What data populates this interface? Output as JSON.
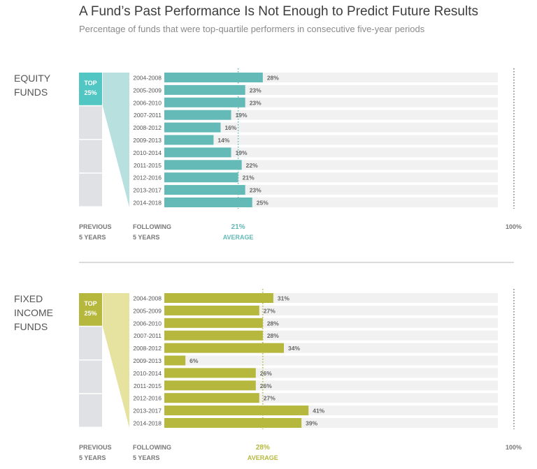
{
  "title": "A Fund’s Past Performance Is Not Enough to Predict Future Results",
  "subtitle": "Percentage of funds that were top-quartile performers in consecutive five-year periods",
  "chart_data": [
    {
      "type": "bar",
      "orientation": "horizontal",
      "panel_label": [
        "EQUITY",
        "FUNDS"
      ],
      "top_box": [
        "TOP",
        "25%"
      ],
      "color": "#63bab7",
      "top_box_color": "#52c6c2",
      "wedge_color": "#b7e0df",
      "categories": [
        "2004-2008",
        "2005-2009",
        "2006-2010",
        "2007-2011",
        "2008-2012",
        "2009-2013",
        "2010-2014",
        "2011-2015",
        "2012-2016",
        "2013-2017",
        "2014-2018"
      ],
      "values": [
        28,
        23,
        23,
        19,
        16,
        14,
        19,
        22,
        21,
        23,
        25
      ],
      "value_labels": [
        "28%",
        "23%",
        "23%",
        "19%",
        "16%",
        "14%",
        "19%",
        "22%",
        "21%",
        "23%",
        "25%"
      ],
      "xlim": [
        0,
        100
      ],
      "average": 21,
      "average_label": [
        "21%",
        "AVERAGE"
      ],
      "max_label": "100%",
      "left_axis_label": [
        "PREVIOUS",
        "5 YEARS"
      ],
      "right_axis_label": [
        "FOLLOWING",
        "5 YEARS"
      ]
    },
    {
      "type": "bar",
      "orientation": "horizontal",
      "panel_label": [
        "FIXED",
        "INCOME",
        "FUNDS"
      ],
      "top_box": [
        "TOP",
        "25%"
      ],
      "color": "#b5b83c",
      "top_box_color": "#b5b83c",
      "wedge_color": "#e6e3a0",
      "categories": [
        "2004-2008",
        "2005-2009",
        "2006-2010",
        "2007-2011",
        "2008-2012",
        "2009-2013",
        "2010-2014",
        "2011-2015",
        "2012-2016",
        "2013-2017",
        "2014-2018"
      ],
      "values": [
        31,
        27,
        28,
        28,
        34,
        6,
        26,
        26,
        27,
        41,
        39
      ],
      "value_labels": [
        "31%",
        "27%",
        "28%",
        "28%",
        "34%",
        "6%",
        "26%",
        "26%",
        "27%",
        "41%",
        "39%"
      ],
      "xlim": [
        0,
        100
      ],
      "average": 28,
      "average_label": [
        "28%",
        "AVERAGE"
      ],
      "max_label": "100%",
      "left_axis_label": [
        "PREVIOUS",
        "5 YEARS"
      ],
      "right_axis_label": [
        "FOLLOWING",
        "5 YEARS"
      ]
    }
  ]
}
